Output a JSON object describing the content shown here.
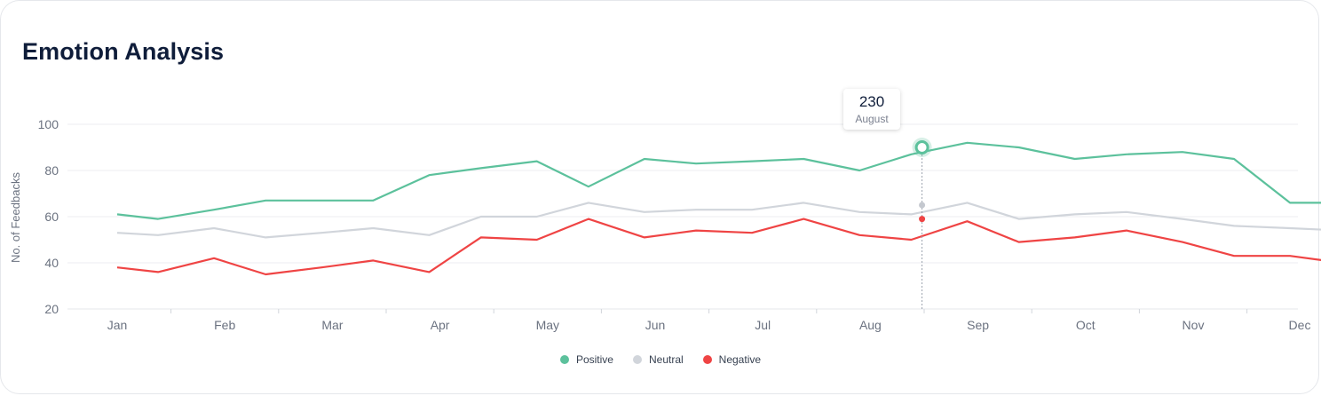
{
  "title": "Emotion Analysis",
  "tooltip": {
    "value": "230",
    "label": "August"
  },
  "legend": {
    "positive": "Positive",
    "neutral": "Neutral",
    "negative": "Negative"
  },
  "chart_data": {
    "type": "line",
    "ylabel": "No. of Feedbacks",
    "xlabel": "",
    "ylim": [
      20,
      100
    ],
    "yticks": [
      20,
      40,
      60,
      80,
      100
    ],
    "grid": true,
    "legend_position": "bottom-center",
    "month_labels": [
      "Jan",
      "Feb",
      "Mar",
      "Apr",
      "May",
      "Jun",
      "Jul",
      "Aug",
      "Sep",
      "Oct",
      "Nov",
      "Dec"
    ],
    "x": [
      0.0,
      0.38,
      0.9,
      1.38,
      1.9,
      2.38,
      2.9,
      3.38,
      3.9,
      4.38,
      4.9,
      5.38,
      5.9,
      6.38,
      6.9,
      7.38,
      7.9,
      8.38,
      8.9,
      9.38,
      9.9,
      10.38,
      10.9,
      11.38
    ],
    "series": [
      {
        "name": "Positive",
        "color": "#5cc19c",
        "values": [
          61,
          59,
          63,
          67,
          67,
          67,
          78,
          81,
          84,
          73,
          85,
          83,
          84,
          85,
          80,
          87,
          92,
          90,
          85,
          87,
          88,
          85,
          66,
          66
        ]
      },
      {
        "name": "Neutral",
        "color": "#d1d5db",
        "values": [
          53,
          52,
          55,
          51,
          53,
          55,
          52,
          60,
          60,
          66,
          62,
          63,
          63,
          66,
          62,
          61,
          66,
          59,
          61,
          62,
          59,
          56,
          55,
          54
        ]
      },
      {
        "name": "Negative",
        "color": "#ef4444",
        "values": [
          38,
          36,
          42,
          35,
          38,
          41,
          36,
          51,
          50,
          59,
          51,
          54,
          53,
          59,
          52,
          50,
          58,
          49,
          51,
          54,
          49,
          43,
          43,
          40
        ]
      }
    ],
    "highlight": {
      "month": "Aug",
      "x": 7.48,
      "values": {
        "Positive": 90,
        "Neutral": 65,
        "Negative": 59
      }
    }
  }
}
